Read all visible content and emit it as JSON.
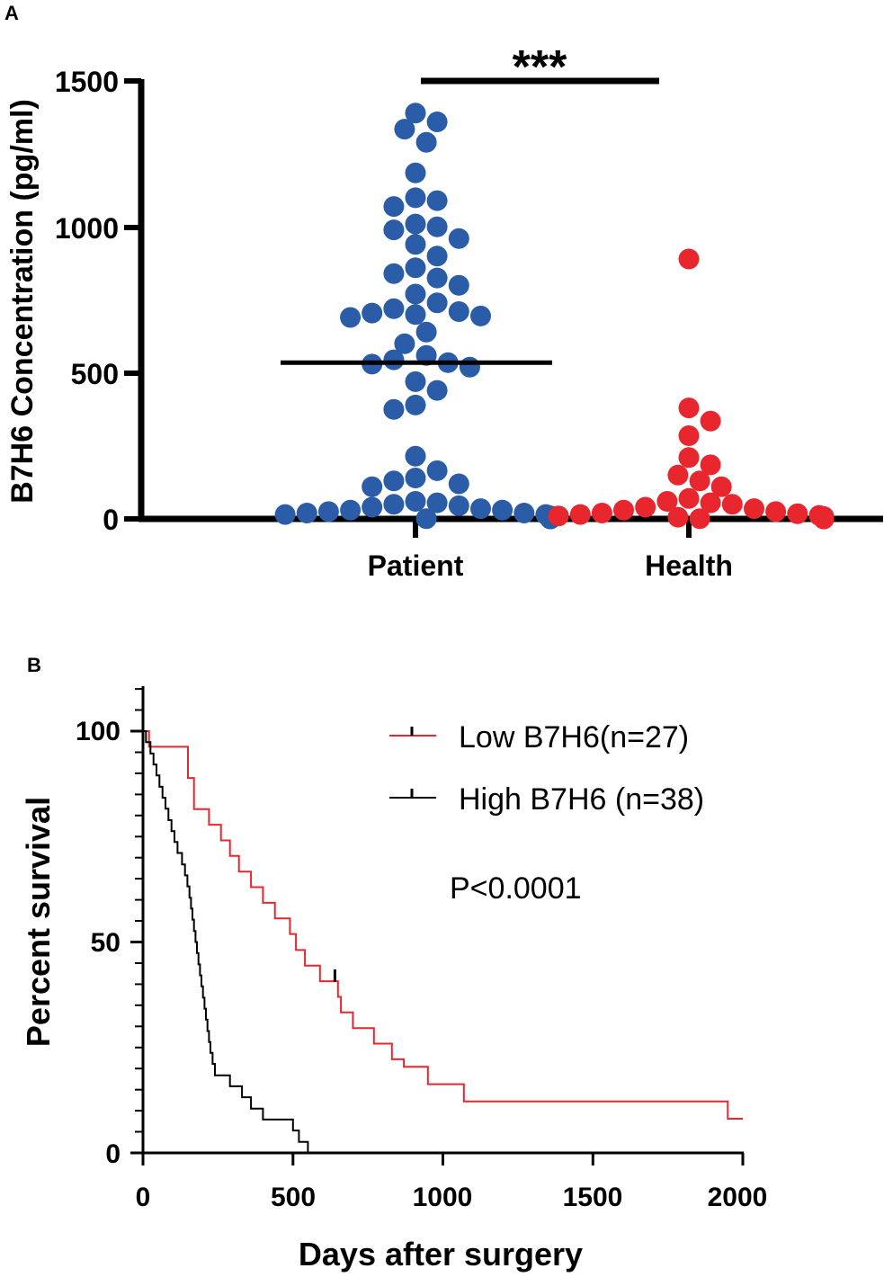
{
  "chart_data": [
    {
      "panel": "A",
      "type": "scatter",
      "subtype": "dot-plot",
      "ylabel": "B7H6 Concentration (pg/ml)",
      "ylim": [
        0,
        1500
      ],
      "yticks": [
        0,
        500,
        1000,
        1500
      ],
      "categories": [
        "Patient",
        "Health"
      ],
      "significance": "***",
      "series": [
        {
          "name": "Patient",
          "color": "#2a5ca8",
          "mean": 535,
          "values": [
            1390,
            1360,
            1335,
            1290,
            1185,
            1100,
            1090,
            1070,
            1010,
            1000,
            990,
            960,
            940,
            900,
            860,
            840,
            825,
            800,
            770,
            740,
            720,
            710,
            705,
            700,
            695,
            690,
            640,
            600,
            560,
            545,
            535,
            530,
            520,
            470,
            440,
            390,
            375,
            215,
            165,
            140,
            130,
            120,
            110,
            60,
            55,
            50,
            45,
            40,
            35,
            30,
            30,
            25,
            20,
            20,
            15,
            15,
            10,
            10,
            10,
            8,
            6,
            5,
            5,
            4,
            3,
            2,
            2,
            1,
            1,
            0,
            0,
            0
          ]
        },
        {
          "name": "Health",
          "color": "#e8262d",
          "values": [
            890,
            380,
            335,
            285,
            210,
            185,
            150,
            130,
            110,
            70,
            60,
            55,
            50,
            40,
            35,
            30,
            25,
            20,
            18,
            15,
            12,
            10,
            8,
            6,
            5,
            4,
            3,
            2,
            1,
            1,
            0,
            0,
            0,
            0
          ]
        }
      ]
    },
    {
      "panel": "B",
      "type": "line",
      "subtype": "kaplan-meier",
      "xlabel": "Days after surgery",
      "ylabel": "Percent survival",
      "xlim": [
        0,
        2000
      ],
      "ylim": [
        0,
        110
      ],
      "xticks": [
        0,
        500,
        1000,
        1500,
        2000
      ],
      "yticks": [
        0,
        50,
        100
      ],
      "annotation": "P<0.0001",
      "series": [
        {
          "name": "Low B7H6(n=27)",
          "color": "#e8262d",
          "steps": [
            [
              0,
              100
            ],
            [
              20,
              96.3
            ],
            [
              150,
              88.9
            ],
            [
              170,
              81.5
            ],
            [
              220,
              77.8
            ],
            [
              260,
              74.1
            ],
            [
              290,
              70.4
            ],
            [
              320,
              66.7
            ],
            [
              360,
              63.0
            ],
            [
              400,
              59.3
            ],
            [
              440,
              55.6
            ],
            [
              490,
              51.9
            ],
            [
              510,
              48.1
            ],
            [
              540,
              44.4
            ],
            [
              590,
              40.7
            ],
            [
              650,
              37.0
            ],
            [
              660,
              33.3
            ],
            [
              700,
              29.6
            ],
            [
              770,
              25.9
            ],
            [
              830,
              22.2
            ],
            [
              870,
              20.4
            ],
            [
              950,
              16.3
            ],
            [
              1070,
              12.2
            ],
            [
              1950,
              8.1
            ],
            [
              2000,
              8.1
            ]
          ],
          "censored": [
            [
              640,
              42.0
            ]
          ]
        },
        {
          "name": "High B7H6 (n=38)",
          "color": "#000000",
          "steps": [
            [
              0,
              100
            ],
            [
              10,
              97.4
            ],
            [
              25,
              94.7
            ],
            [
              35,
              92.1
            ],
            [
              45,
              89.5
            ],
            [
              55,
              86.8
            ],
            [
              65,
              84.2
            ],
            [
              75,
              81.6
            ],
            [
              85,
              78.9
            ],
            [
              95,
              76.3
            ],
            [
              105,
              73.7
            ],
            [
              115,
              71.1
            ],
            [
              130,
              68.4
            ],
            [
              140,
              65.8
            ],
            [
              148,
              63.2
            ],
            [
              155,
              60.5
            ],
            [
              160,
              57.9
            ],
            [
              165,
              55.3
            ],
            [
              170,
              52.6
            ],
            [
              175,
              50.0
            ],
            [
              180,
              47.4
            ],
            [
              185,
              44.7
            ],
            [
              190,
              42.1
            ],
            [
              195,
              39.5
            ],
            [
              200,
              36.8
            ],
            [
              205,
              34.2
            ],
            [
              210,
              31.6
            ],
            [
              215,
              28.9
            ],
            [
              220,
              26.3
            ],
            [
              225,
              23.7
            ],
            [
              232,
              21.1
            ],
            [
              240,
              18.4
            ],
            [
              290,
              15.8
            ],
            [
              330,
              13.2
            ],
            [
              360,
              10.5
            ],
            [
              400,
              7.9
            ],
            [
              500,
              5.3
            ],
            [
              520,
              2.6
            ],
            [
              550,
              0
            ],
            [
              555,
              0
            ]
          ],
          "censored": []
        }
      ]
    }
  ],
  "panelA": {
    "label": "A",
    "stars": "***",
    "yticks": [
      "0",
      "500",
      "1000",
      "1500"
    ],
    "ylabel": "B7H6 Concentration (pg/ml)",
    "cat1": "Patient",
    "cat2": "Health"
  },
  "panelB": {
    "label": "B",
    "xticks": [
      "0",
      "500",
      "1000",
      "1500",
      "2000"
    ],
    "yticks": [
      "0",
      "50",
      "100"
    ],
    "xlabel": "Days after surgery",
    "ylabel": "Percent survival",
    "legend_low": "Low B7H6(n=27)",
    "legend_high": "High B7H6 (n=38)",
    "pvalue": "P<0.0001"
  }
}
